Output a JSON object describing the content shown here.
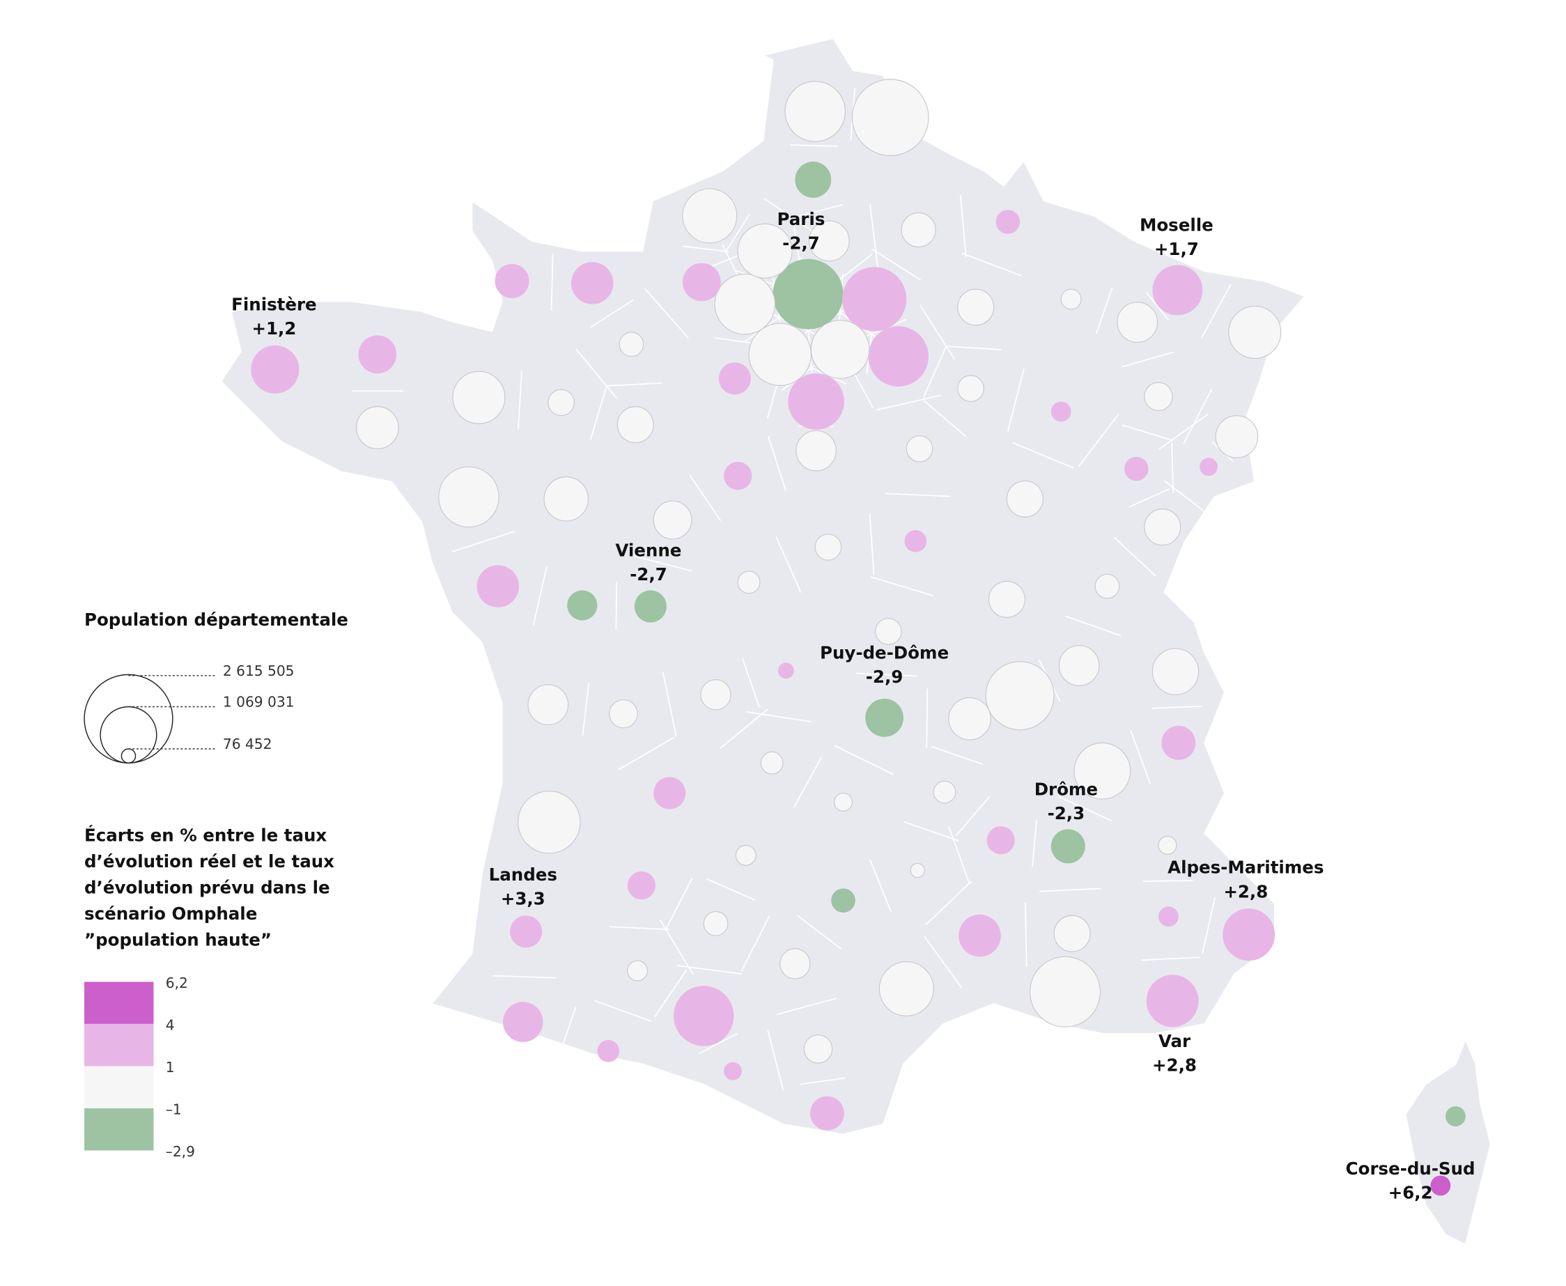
{
  "colors": {
    "land": "#e8e9ef",
    "border": "#ffffff",
    "class_very_high": "#cc5fcc",
    "class_high": "#e8b6e6",
    "class_neutral": "#f6f6f6",
    "class_low": "#9dc3a2"
  },
  "legend_size": {
    "title": "Population départementale",
    "values": [
      "2 615 505",
      "1 069 031",
      "76 452"
    ]
  },
  "legend_color": {
    "title_lines": [
      "Écarts en % entre le taux",
      "d’évolution réel et le taux",
      "d’évolution prévu dans le",
      "scénario Omphale",
      "”population haute”"
    ],
    "breaks": [
      "6,2",
      "4",
      "1",
      "–1",
      "–2,9"
    ]
  },
  "labels": [
    {
      "name": "Paris",
      "value": "-2,7"
    },
    {
      "name": "Moselle",
      "value": "+1,7"
    },
    {
      "name": "Finistère",
      "value": "+1,2"
    },
    {
      "name": "Vienne",
      "value": "-2,7"
    },
    {
      "name": "Puy-de-Dôme",
      "value": "-2,9"
    },
    {
      "name": "Drôme",
      "value": "-2,3"
    },
    {
      "name": "Alpes-Maritimes",
      "value": "+2,8"
    },
    {
      "name": "Landes",
      "value": "+3,3"
    },
    {
      "name": "Var",
      "value": "+2,8"
    },
    {
      "name": "Corse-du-Sud",
      "value": "+6,2"
    }
  ]
}
